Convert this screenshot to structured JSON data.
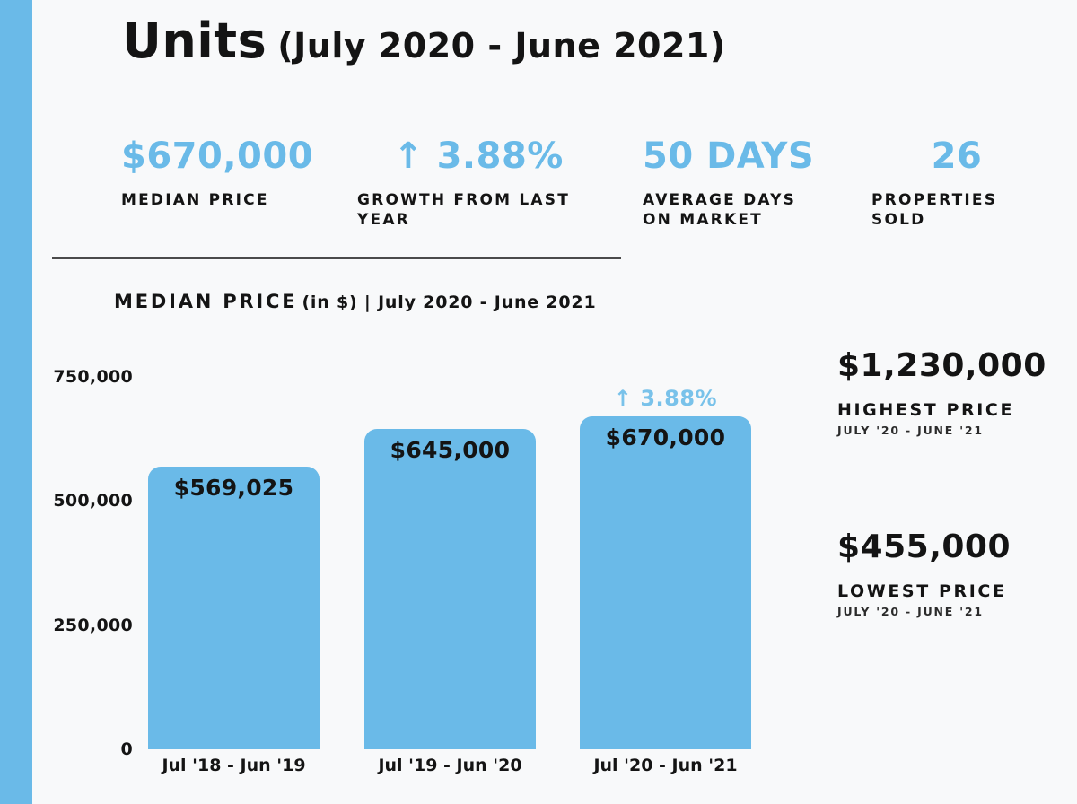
{
  "header": {
    "title_main": "Units",
    "title_sub": "(July 2020 - June 2021)"
  },
  "colors": {
    "accent_blue": "#6ABAE8",
    "text_black": "#141414",
    "background": "#f8f9fa",
    "divider": "#4b4b4b"
  },
  "stats": [
    {
      "value": "$670,000",
      "label": "MEDIAN PRICE"
    },
    {
      "value": "↑ 3.88%",
      "label": "GROWTH FROM LAST YEAR"
    },
    {
      "value": "50 DAYS",
      "label": "AVERAGE DAYS ON MARKET"
    },
    {
      "value": "26",
      "label": "PROPERTIES SOLD"
    }
  ],
  "chart_heading": {
    "main": "MEDIAN PRICE",
    "sub": "(in $) | July 2020 - June 2021"
  },
  "chart_data": {
    "type": "bar",
    "title": "MEDIAN PRICE (in $) | July 2020 - June 2021",
    "categories": [
      "Jul '18 - Jun '19",
      "Jul '19 - Jun '20",
      "Jul '20 - Jun '21"
    ],
    "values": [
      569025,
      645000,
      670000
    ],
    "bar_labels": [
      "$569,025",
      "$645,000",
      "$670,000"
    ],
    "annotation": {
      "text": "↑ 3.88%",
      "bar_index": 2
    },
    "xlabel": "",
    "ylabel": "",
    "yticks": [
      "750,000",
      "500,000",
      "250,000",
      "0"
    ],
    "ytick_values": [
      750000,
      500000,
      250000,
      0
    ],
    "ylim": [
      0,
      750000
    ],
    "bar_color": "#6ABAE8",
    "grid": false,
    "legend": "none"
  },
  "extremes": [
    {
      "value": "$1,230,000",
      "label": "HIGHEST PRICE",
      "sublabel": "JULY '20 - JUNE '21"
    },
    {
      "value": "$455,000",
      "label": "LOWEST PRICE",
      "sublabel": "JULY '20 - JUNE '21"
    }
  ]
}
